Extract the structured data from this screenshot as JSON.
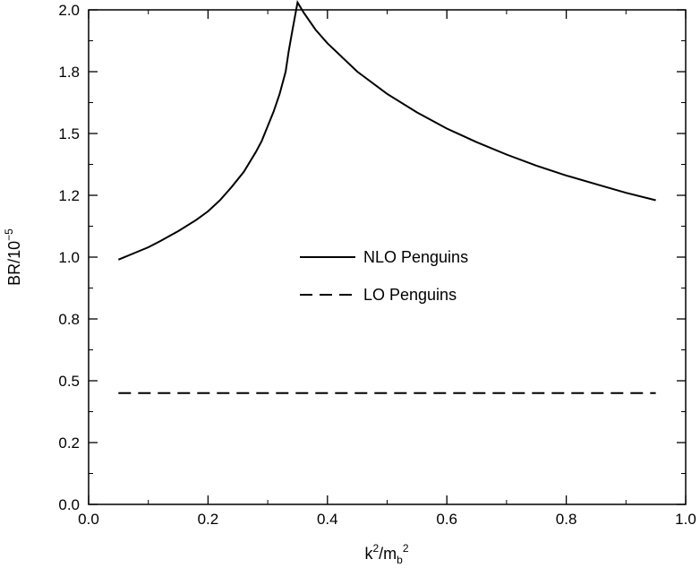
{
  "chart_data": {
    "type": "line",
    "title": "",
    "xlabel": {
      "base": "k",
      "sup1": "2",
      "mid": "/m",
      "sub": "b",
      "sup2": "2"
    },
    "ylabel": {
      "base": "BR/10",
      "sup": "−5"
    },
    "xlim": [
      0.0,
      1.0
    ],
    "ylim": [
      0.0,
      2.0
    ],
    "xticks": [
      0.0,
      0.2,
      0.4,
      0.6,
      0.8,
      1.0
    ],
    "xtick_labels": [
      "0.0",
      "0.2",
      "0.4",
      "0.6",
      "0.8",
      "1.0"
    ],
    "yticks": [
      0.0,
      0.25,
      0.5,
      0.75,
      1.0,
      1.25,
      1.5,
      1.75,
      2.0
    ],
    "ytick_labels": [
      "0.0",
      "0.2",
      "0.5",
      "0.8",
      "1.0",
      "1.2",
      "1.5",
      "1.8",
      "2.0"
    ],
    "grid": false,
    "legend_position": "center",
    "series": [
      {
        "name": "NLO Penguins",
        "style": "solid",
        "color": "#000000",
        "x": [
          0.05,
          0.08,
          0.1,
          0.12,
          0.15,
          0.18,
          0.2,
          0.22,
          0.24,
          0.26,
          0.28,
          0.29,
          0.3,
          0.31,
          0.32,
          0.33,
          0.335,
          0.34,
          0.35,
          0.36,
          0.38,
          0.4,
          0.45,
          0.5,
          0.55,
          0.6,
          0.65,
          0.7,
          0.75,
          0.8,
          0.85,
          0.9,
          0.95
        ],
        "values": [
          0.99,
          1.02,
          1.04,
          1.065,
          1.105,
          1.15,
          1.185,
          1.23,
          1.285,
          1.345,
          1.425,
          1.47,
          1.53,
          1.59,
          1.66,
          1.75,
          1.83,
          1.9,
          2.03,
          1.99,
          1.92,
          1.865,
          1.75,
          1.66,
          1.585,
          1.52,
          1.465,
          1.415,
          1.37,
          1.33,
          1.295,
          1.26,
          1.23
        ]
      },
      {
        "name": "LO Penguins",
        "style": "dashed",
        "color": "#000000",
        "x": [
          0.05,
          0.95
        ],
        "values": [
          0.45,
          0.45
        ]
      }
    ]
  }
}
